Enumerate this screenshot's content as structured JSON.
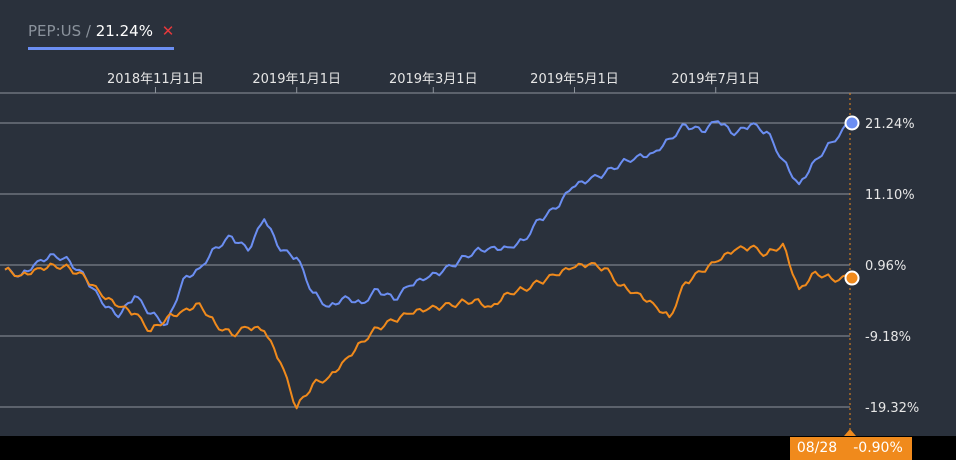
{
  "legend": {
    "symbol": "PEP:US",
    "separator": "/",
    "value": "21.24%",
    "close": "✕"
  },
  "footer": {
    "date": "08/28",
    "orange_value": "-0.90%"
  },
  "colors": {
    "background": "#2a313c",
    "blue": "#6b8ef2",
    "orange": "#f08a1c",
    "grid": "#8e949c"
  },
  "chart_data": {
    "type": "line",
    "x_ticks": [
      "2018年11月1日",
      "2019年1月1日",
      "2019年3月1日",
      "2019年5月1日",
      "2019年7月1日"
    ],
    "y_ticks": [
      "21.24%",
      "11.10%",
      "0.96%",
      "-9.18%",
      "-19.32%"
    ],
    "y_tick_values": [
      21.24,
      11.1,
      0.96,
      -9.18,
      -19.32
    ],
    "ylim": [
      -24,
      26
    ],
    "x_range": [
      "2018-08-28",
      "2019-08-28"
    ],
    "grid": true,
    "series": [
      {
        "name": "PEP:US",
        "color": "#6b8ef2",
        "end_value": 21.24,
        "points": [
          [
            "2018-08-28",
            0.3
          ],
          [
            "2018-09-04",
            -0.5
          ],
          [
            "2018-09-11",
            1.5
          ],
          [
            "2018-09-18",
            2.5
          ],
          [
            "2018-09-25",
            1.5
          ],
          [
            "2018-10-02",
            -1.0
          ],
          [
            "2018-10-09",
            -4.5
          ],
          [
            "2018-10-16",
            -6.5
          ],
          [
            "2018-10-23",
            -3.5
          ],
          [
            "2018-10-30",
            -6.0
          ],
          [
            "2018-11-06",
            -7.5
          ],
          [
            "2018-11-13",
            -1.0
          ],
          [
            "2018-11-20",
            0.5
          ],
          [
            "2018-11-27",
            3.5
          ],
          [
            "2018-12-04",
            5.0
          ],
          [
            "2018-12-11",
            3.0
          ],
          [
            "2018-12-18",
            7.5
          ],
          [
            "2018-12-25",
            3.0
          ],
          [
            "2019-01-01",
            2.0
          ],
          [
            "2019-01-08",
            -3.0
          ],
          [
            "2019-01-15",
            -5.0
          ],
          [
            "2019-01-22",
            -3.5
          ],
          [
            "2019-01-29",
            -4.5
          ],
          [
            "2019-02-05",
            -2.5
          ],
          [
            "2019-02-12",
            -4.0
          ],
          [
            "2019-02-19",
            -2.0
          ],
          [
            "2019-02-26",
            -1.0
          ],
          [
            "2019-03-05",
            0.0
          ],
          [
            "2019-03-12",
            1.5
          ],
          [
            "2019-03-19",
            3.0
          ],
          [
            "2019-03-26",
            3.5
          ],
          [
            "2019-04-02",
            3.5
          ],
          [
            "2019-04-09",
            4.5
          ],
          [
            "2019-04-16",
            7.5
          ],
          [
            "2019-04-23",
            9.0
          ],
          [
            "2019-04-30",
            12.0
          ],
          [
            "2019-05-07",
            13.0
          ],
          [
            "2019-05-14",
            14.0
          ],
          [
            "2019-05-21",
            15.5
          ],
          [
            "2019-05-28",
            16.5
          ],
          [
            "2019-06-04",
            17.0
          ],
          [
            "2019-06-11",
            19.0
          ],
          [
            "2019-06-18",
            21.0
          ],
          [
            "2019-06-25",
            20.0
          ],
          [
            "2019-07-02",
            21.5
          ],
          [
            "2019-07-09",
            19.5
          ],
          [
            "2019-07-16",
            21.0
          ],
          [
            "2019-07-23",
            20.0
          ],
          [
            "2019-07-30",
            16.0
          ],
          [
            "2019-08-06",
            12.5
          ],
          [
            "2019-08-13",
            16.0
          ],
          [
            "2019-08-20",
            18.5
          ],
          [
            "2019-08-28",
            21.24
          ]
        ]
      },
      {
        "name": "",
        "color": "#f08a1c",
        "end_value": -0.9,
        "points": [
          [
            "2018-08-28",
            0.3
          ],
          [
            "2018-09-04",
            -0.5
          ],
          [
            "2018-09-11",
            0.5
          ],
          [
            "2018-09-18",
            1.0
          ],
          [
            "2018-09-25",
            0.5
          ],
          [
            "2018-10-02",
            -1.0
          ],
          [
            "2018-10-09",
            -3.5
          ],
          [
            "2018-10-16",
            -5.0
          ],
          [
            "2018-10-23",
            -6.0
          ],
          [
            "2018-10-30",
            -8.5
          ],
          [
            "2018-11-06",
            -6.5
          ],
          [
            "2018-11-13",
            -5.5
          ],
          [
            "2018-11-20",
            -4.5
          ],
          [
            "2018-11-27",
            -7.5
          ],
          [
            "2018-12-04",
            -9.0
          ],
          [
            "2018-12-11",
            -8.0
          ],
          [
            "2018-12-18",
            -8.5
          ],
          [
            "2018-12-25",
            -13.0
          ],
          [
            "2019-01-01",
            -19.5
          ],
          [
            "2019-01-08",
            -16.0
          ],
          [
            "2019-01-15",
            -15.0
          ],
          [
            "2019-01-22",
            -12.5
          ],
          [
            "2019-01-29",
            -10.0
          ],
          [
            "2019-02-05",
            -8.0
          ],
          [
            "2019-02-12",
            -7.0
          ],
          [
            "2019-02-19",
            -6.0
          ],
          [
            "2019-02-26",
            -5.5
          ],
          [
            "2019-03-05",
            -5.0
          ],
          [
            "2019-03-12",
            -4.5
          ],
          [
            "2019-03-19",
            -4.0
          ],
          [
            "2019-03-26",
            -5.0
          ],
          [
            "2019-04-02",
            -3.0
          ],
          [
            "2019-04-09",
            -2.5
          ],
          [
            "2019-04-16",
            -1.5
          ],
          [
            "2019-04-23",
            -0.5
          ],
          [
            "2019-04-30",
            0.5
          ],
          [
            "2019-05-07",
            1.0
          ],
          [
            "2019-05-14",
            0.5
          ],
          [
            "2019-05-21",
            -2.0
          ],
          [
            "2019-05-28",
            -3.0
          ],
          [
            "2019-06-04",
            -4.5
          ],
          [
            "2019-06-11",
            -6.5
          ],
          [
            "2019-06-18",
            -1.5
          ],
          [
            "2019-06-25",
            0.0
          ],
          [
            "2019-07-02",
            1.5
          ],
          [
            "2019-07-09",
            3.0
          ],
          [
            "2019-07-16",
            3.5
          ],
          [
            "2019-07-23",
            2.5
          ],
          [
            "2019-07-30",
            4.0
          ],
          [
            "2019-08-06",
            -2.5
          ],
          [
            "2019-08-13",
            0.0
          ],
          [
            "2019-08-20",
            -1.0
          ],
          [
            "2019-08-28",
            -0.9
          ]
        ]
      }
    ]
  }
}
